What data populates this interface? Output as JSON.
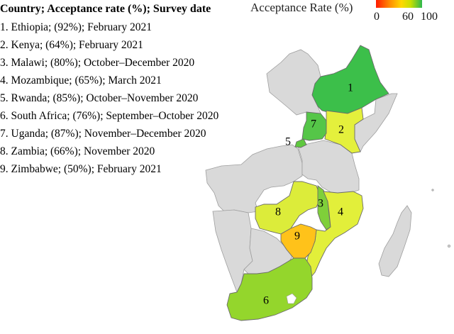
{
  "list": {
    "title": "Country; Acceptance rate (%); Survey date",
    "items": [
      "1. Ethiopia; (92%); February 2021",
      "2. Kenya; (64%); February 2021",
      "3. Malawi; (80%); October–December 2020",
      "4. Mozambique; (65%); March 2021",
      "5. Rwanda; (85%); October–November 2020",
      "6. South Africa; (76%); September–October 2020",
      "7. Uganda; (87%); November–December 2020",
      "8. Zambia; (66%); November 2020",
      "9. Zimbabwe; (50%); February 2021"
    ]
  },
  "legend": {
    "title": "Acceptance Rate (%)",
    "ticks": [
      "0",
      "60",
      "100"
    ],
    "colors": {
      "low": "#ff1a00",
      "mid": "#ffd800",
      "high": "#2db84d"
    }
  },
  "map": {
    "base_color": "#d9d9d9",
    "countries": [
      {
        "id": "1",
        "name": "Ethiopia",
        "rate": 92,
        "color": "#3cbf4a"
      },
      {
        "id": "2",
        "name": "Kenya",
        "rate": 64,
        "color": "#e4f03c"
      },
      {
        "id": "3",
        "name": "Malawi",
        "rate": 80,
        "color": "#7fcf3a"
      },
      {
        "id": "4",
        "name": "Mozambique",
        "rate": 65,
        "color": "#e2ef3a"
      },
      {
        "id": "5",
        "name": "Rwanda",
        "rate": 85,
        "color": "#5fc83f"
      },
      {
        "id": "6",
        "name": "South Africa",
        "rate": 76,
        "color": "#94d62c"
      },
      {
        "id": "7",
        "name": "Uganda",
        "rate": 87,
        "color": "#55c648"
      },
      {
        "id": "8",
        "name": "Zambia",
        "rate": 66,
        "color": "#dcec3a"
      },
      {
        "id": "9",
        "name": "Zimbabwe",
        "rate": 50,
        "color": "#ffc21a"
      }
    ]
  }
}
